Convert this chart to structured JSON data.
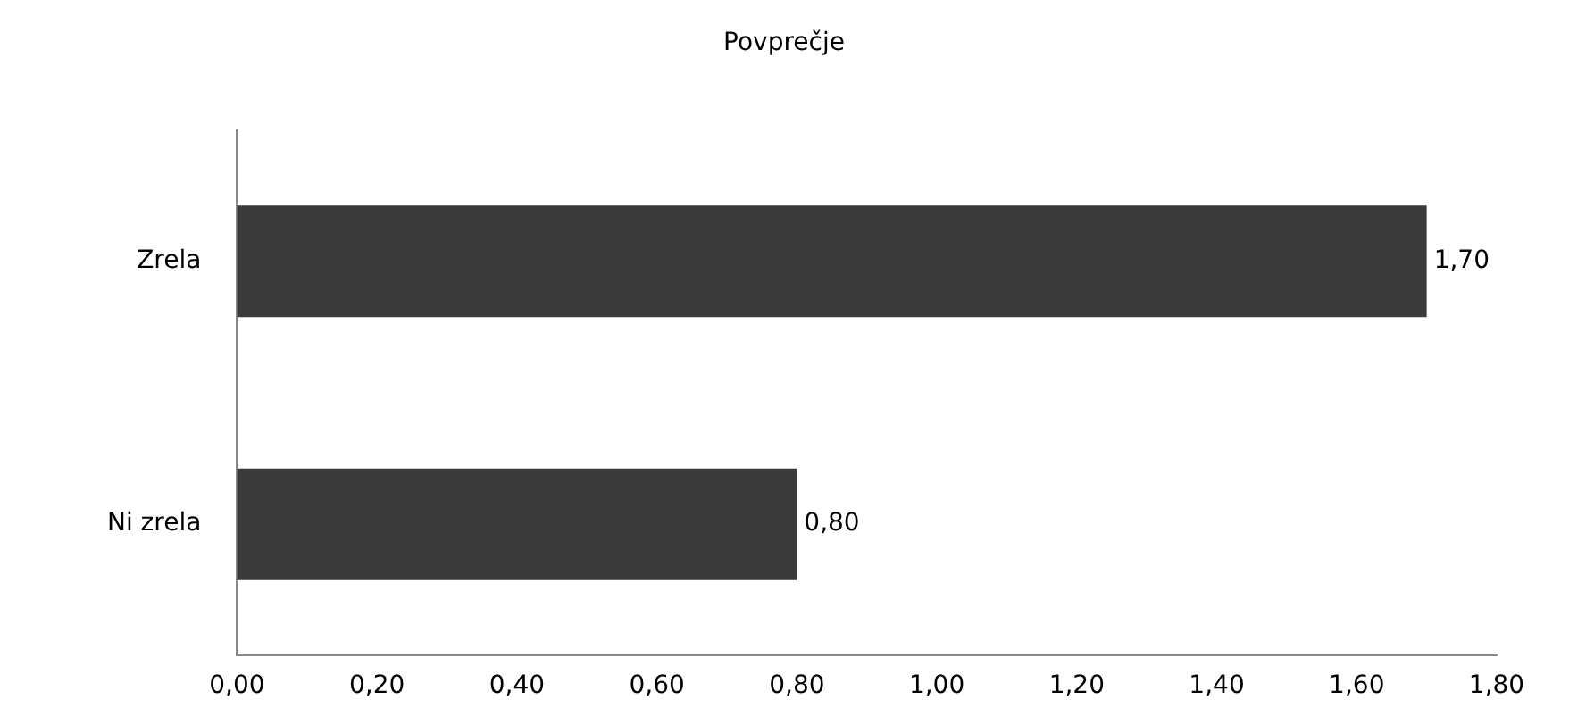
{
  "chart_data": {
    "type": "bar",
    "orientation": "horizontal",
    "title": "Povprečje",
    "categories": [
      "Zrela",
      "Ni zrela"
    ],
    "values": [
      1.7,
      0.8
    ],
    "color": "#3a3a3a",
    "value_labels": [
      "1,70",
      "0,80"
    ],
    "xlim": [
      0,
      1.8
    ],
    "xticks": [
      {
        "value": 0,
        "label": "0,00"
      },
      {
        "value": 0.2,
        "label": "0,20"
      },
      {
        "value": 0.4,
        "label": "0,40"
      },
      {
        "value": 0.6,
        "label": "0,60"
      },
      {
        "value": 0.8,
        "label": "0,80"
      },
      {
        "value": 1.0,
        "label": "1,00"
      },
      {
        "value": 1.2,
        "label": "1,20"
      },
      {
        "value": 1.4,
        "label": "1,40"
      },
      {
        "value": 1.6,
        "label": "1,60"
      },
      {
        "value": 1.8,
        "label": "1,80"
      }
    ],
    "grid": false,
    "legend": false
  }
}
